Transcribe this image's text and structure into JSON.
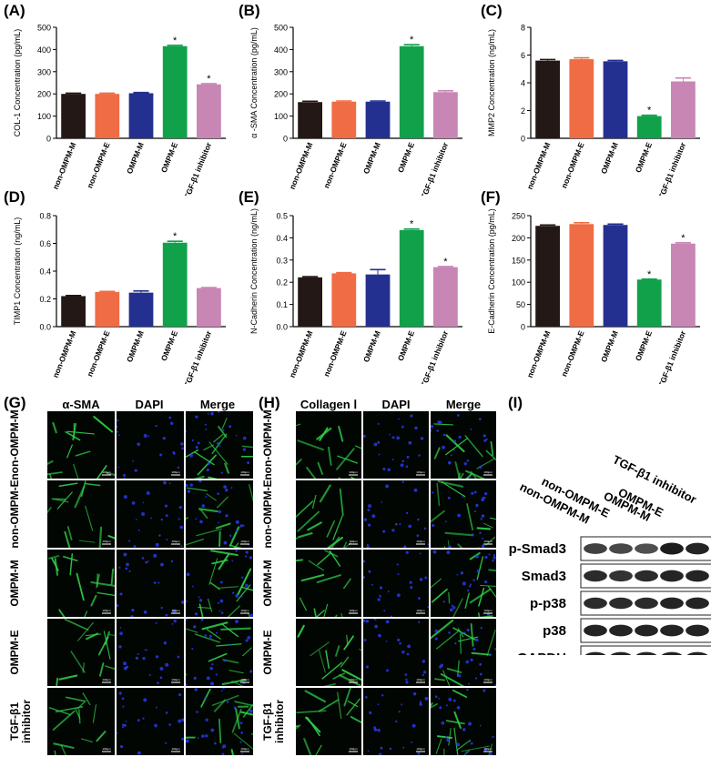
{
  "panels": {
    "A": "(A)",
    "B": "(B)",
    "C": "(C)",
    "D": "(D)",
    "E": "(E)",
    "F": "(F)",
    "G": "(G)",
    "H": "(H)",
    "I": "(I)"
  },
  "chart_data": [
    {
      "id": "A",
      "type": "bar",
      "categories": [
        "non-OMPM-M",
        "non-OMPM-E",
        "OMPM-M",
        "OMPM-E",
        "TGF-β1 inhibitor"
      ],
      "values": [
        200,
        200,
        203,
        415,
        243
      ],
      "errors": [
        3,
        3,
        3,
        4,
        3
      ],
      "significant": [
        false,
        false,
        false,
        true,
        true
      ],
      "ylabel": "COL-1 Concentration (pg/mL)",
      "ylim": [
        0,
        500
      ],
      "yticks": [
        0,
        100,
        200,
        300,
        400,
        500
      ],
      "colors": [
        "#231815",
        "#ef6c44",
        "#24308f",
        "#12a14b",
        "#c886b4"
      ]
    },
    {
      "id": "B",
      "type": "bar",
      "categories": [
        "non-OMPM-M",
        "non-OMPM-E",
        "OMPM-M",
        "OMPM-E",
        "TGF-β1 inhibitor"
      ],
      "values": [
        163,
        165,
        165,
        415,
        208
      ],
      "errors": [
        4,
        3,
        3,
        7,
        6
      ],
      "significant": [
        false,
        false,
        false,
        true,
        false
      ],
      "ylabel": "α -SMA Concentration (pg/mL)",
      "ylim": [
        0,
        500
      ],
      "yticks": [
        0,
        100,
        200,
        300,
        400,
        500
      ],
      "colors": [
        "#231815",
        "#ef6c44",
        "#24308f",
        "#12a14b",
        "#c886b4"
      ]
    },
    {
      "id": "C",
      "type": "bar",
      "categories": [
        "non-OMPM-M",
        "non-OMPM-E",
        "OMPM-M",
        "OMPM-E",
        "TGF-β1 inhibitor"
      ],
      "values": [
        5.6,
        5.7,
        5.55,
        1.6,
        4.1
      ],
      "errors": [
        0.08,
        0.1,
        0.06,
        0.06,
        0.25
      ],
      "significant": [
        false,
        false,
        false,
        true,
        false
      ],
      "ylabel": "MMP2 Concentration (ng/mL)",
      "ylim": [
        0,
        8
      ],
      "yticks": [
        0,
        2,
        4,
        6,
        8
      ],
      "colors": [
        "#231815",
        "#ef6c44",
        "#24308f",
        "#12a14b",
        "#c886b4"
      ]
    },
    {
      "id": "D",
      "type": "bar",
      "categories": [
        "non-OMPM-M",
        "non-OMPM-E",
        "OMPM-M",
        "OMPM-E",
        "TGF-β1 inhibitor"
      ],
      "values": [
        0.22,
        0.25,
        0.245,
        0.605,
        0.278
      ],
      "errors": [
        0.004,
        0.004,
        0.012,
        0.01,
        0.004
      ],
      "significant": [
        false,
        false,
        false,
        true,
        false
      ],
      "ylabel": "TIMP1 Concentration (ng/mL)",
      "ylim": [
        0,
        0.8
      ],
      "yticks": [
        0.0,
        0.2,
        0.4,
        0.6,
        0.8
      ],
      "ytick_labels": [
        "0.0",
        "0.2",
        "0.4",
        "0.6",
        "0.8"
      ],
      "colors": [
        "#231815",
        "#ef6c44",
        "#24308f",
        "#12a14b",
        "#c886b4"
      ]
    },
    {
      "id": "E",
      "type": "bar",
      "categories": [
        "non-OMPM-M",
        "non-OMPM-E",
        "OMPM-M",
        "OMPM-E",
        "TGF-β1 inhibitor"
      ],
      "values": [
        0.222,
        0.24,
        0.235,
        0.435,
        0.268
      ],
      "errors": [
        0.003,
        0.003,
        0.022,
        0.005,
        0.003
      ],
      "significant": [
        false,
        false,
        false,
        true,
        true
      ],
      "ylabel": "N-Cadherin Concentration (ng/mL)",
      "ylim": [
        0,
        0.5
      ],
      "yticks": [
        0.0,
        0.1,
        0.2,
        0.3,
        0.4,
        0.5
      ],
      "ytick_labels": [
        "0.0",
        "0.1",
        "0.2",
        "0.3",
        "0.4",
        "0.5"
      ],
      "colors": [
        "#231815",
        "#ef6c44",
        "#24308f",
        "#12a14b",
        "#c886b4"
      ]
    },
    {
      "id": "F",
      "type": "bar",
      "categories": [
        "non-OMPM-M",
        "non-OMPM-E",
        "OMPM-M",
        "OMPM-E",
        "TGF-β1 inhibitor"
      ],
      "values": [
        227,
        231,
        229,
        106,
        187
      ],
      "errors": [
        2,
        3,
        2,
        1,
        2
      ],
      "significant": [
        false,
        false,
        false,
        true,
        true
      ],
      "ylabel": "E-Cadherin Concentration (pg/mL)",
      "ylim": [
        0,
        250
      ],
      "yticks": [
        0,
        50,
        100,
        150,
        200,
        250
      ],
      "colors": [
        "#231815",
        "#ef6c44",
        "#24308f",
        "#12a14b",
        "#c886b4"
      ]
    }
  ],
  "significance_mark": "*",
  "microscopy": {
    "G": {
      "columns": [
        "α-SMA",
        "DAPI",
        "Merge"
      ]
    },
    "H": {
      "columns": [
        "Collagen Ⅰ",
        "DAPI",
        "Merge"
      ]
    },
    "rows": [
      "non-OMPM-M",
      "non-OMPM-E",
      "OMPM-M",
      "OMPM-E",
      "TGF-β1 inhibitor"
    ],
    "row_label_lines": [
      [
        "non-OMPM-M"
      ],
      [
        "non-OMPM-E"
      ],
      [
        "OMPM-M"
      ],
      [
        "OMPM-E"
      ],
      [
        "TGF-β1",
        "inhibitor"
      ]
    ],
    "channel_colors": {
      "green": "#2fd14a",
      "blue": "#2a3cff",
      "background": "#020602"
    },
    "scale_bar_text": "100μm"
  },
  "western_blot": {
    "lanes": [
      "non-OMPM-M",
      "non-OMPM-E",
      "OMPM-M",
      "OMPM-E",
      "TGF-β1 inhibitor"
    ],
    "proteins": [
      "p-Smad3",
      "Smad3",
      "p-p38",
      "p38",
      "GAPDH"
    ],
    "band_intensity": [
      [
        0.75,
        0.7,
        0.65,
        1.0,
        0.95
      ],
      [
        0.9,
        0.85,
        0.9,
        0.95,
        0.95
      ],
      [
        0.9,
        0.9,
        0.9,
        0.95,
        0.95
      ],
      [
        0.95,
        0.95,
        0.95,
        0.95,
        0.95
      ],
      [
        0.95,
        0.95,
        0.95,
        0.95,
        0.95
      ]
    ]
  }
}
